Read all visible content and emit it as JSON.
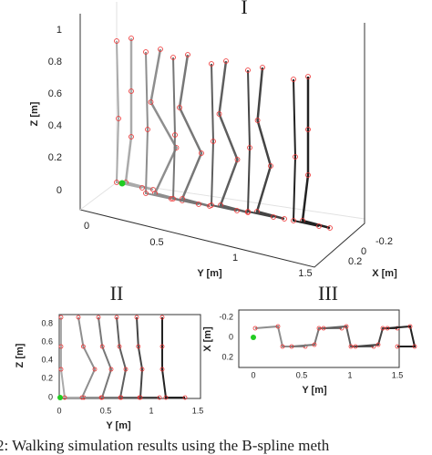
{
  "panels": [
    {
      "label": "I",
      "zlabel": "Z [m]",
      "ylabel": "Y [m]",
      "xlabel": "X [m]",
      "zticks": [
        "0",
        "0.2",
        "0.4",
        "0.6",
        "0.8",
        "1"
      ],
      "yticks": [
        "0",
        "0.5",
        "1",
        "1.5"
      ],
      "xticks": [
        "-0.2",
        "0",
        "0.2"
      ]
    },
    {
      "label": "II",
      "zlabel": "Z [m]",
      "ylabel": "Y [m]",
      "zticks": [
        "0",
        "0.2",
        "0.4",
        "0.6",
        "0.8"
      ],
      "yticks": [
        "0",
        "0.5",
        "1",
        "1.5"
      ]
    },
    {
      "label": "III",
      "xlabel": "X [m]",
      "ylabel": "Y [m]",
      "xticks": [
        "-0.2",
        "0",
        "0.2"
      ],
      "yticks": [
        "0",
        "0.5",
        "1",
        "1.5"
      ]
    }
  ],
  "caption": "2: Walking simulation results using the B-spline meth"
}
